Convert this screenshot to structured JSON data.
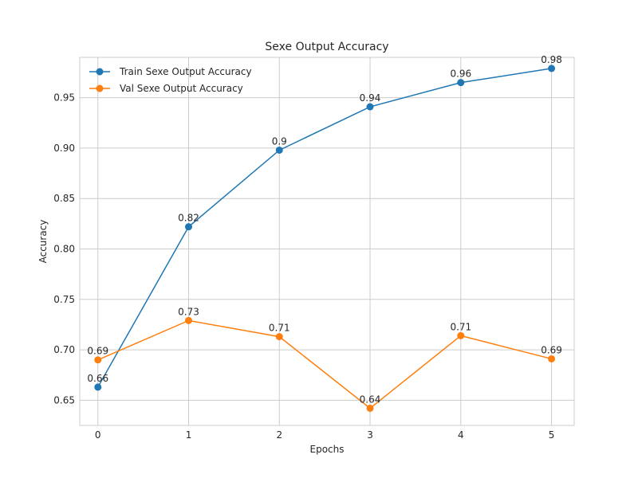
{
  "chart_data": {
    "type": "line",
    "title": "Sexe Output Accuracy",
    "xlabel": "Epochs",
    "ylabel": "Accuracy",
    "x": [
      0,
      1,
      2,
      3,
      4,
      5
    ],
    "x_ticks": [
      "0",
      "1",
      "2",
      "3",
      "4",
      "5"
    ],
    "y_ticks": [
      "0.65",
      "0.70",
      "0.75",
      "0.80",
      "0.85",
      "0.90",
      "0.95"
    ],
    "xlim": [
      -0.2,
      5.25
    ],
    "ylim": [
      0.625,
      0.99
    ],
    "grid": true,
    "legend_position": "top-left",
    "series": [
      {
        "name": "Train Sexe Output Accuracy",
        "color": "#1f77b4",
        "marker": "circle",
        "values": [
          0.663,
          0.822,
          0.898,
          0.941,
          0.965,
          0.979
        ],
        "labels": [
          "0.66",
          "0.82",
          "0.9",
          "0.94",
          "0.96",
          "0.98"
        ]
      },
      {
        "name": "Val Sexe Output Accuracy",
        "color": "#ff7f0e",
        "marker": "circle",
        "values": [
          0.69,
          0.729,
          0.713,
          0.642,
          0.714,
          0.691
        ],
        "labels": [
          "0.69",
          "0.73",
          "0.71",
          "0.64",
          "0.71",
          "0.69"
        ]
      }
    ]
  }
}
